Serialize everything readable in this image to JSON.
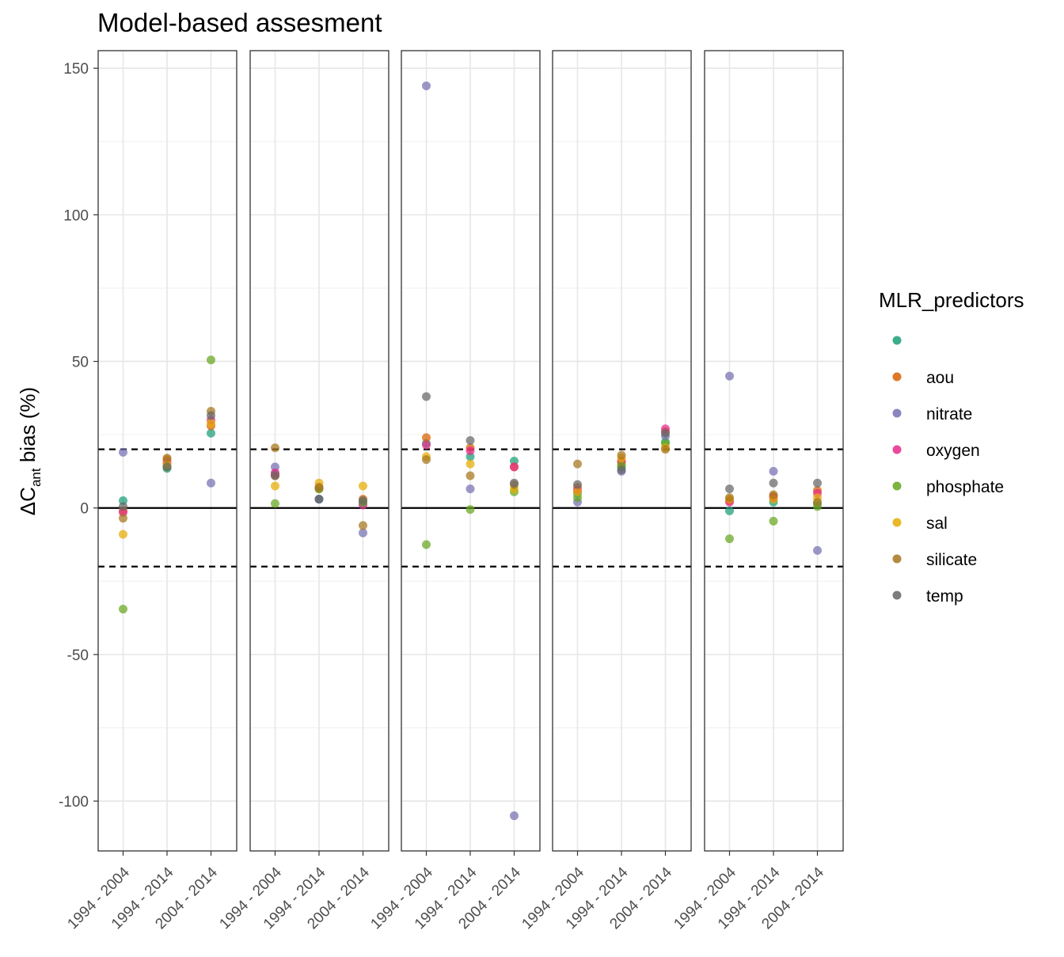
{
  "chart_data": {
    "type": "scatter",
    "title": "Model-based assesment",
    "ylabel": {
      "prefix": "ΔC",
      "subscript": "ant",
      "suffix": " bias (%)"
    },
    "xlabel": "",
    "ylim": [
      -117,
      156
    ],
    "y_ticks": [
      150,
      100,
      50,
      0,
      -50,
      -100
    ],
    "y_tick_labels": [
      "150",
      "100",
      "50",
      "0",
      "-50",
      "-100"
    ],
    "categories": [
      "1994 - 2004",
      "1994 - 2014",
      "2004 - 2014"
    ],
    "reference_lines": {
      "solid": 0,
      "dashed": [
        20,
        -20
      ]
    },
    "grid": true,
    "legend": {
      "title": "MLR_predictors",
      "position": "right",
      "entries": [
        "",
        "aou",
        "nitrate",
        "oxygen",
        "phosphate",
        "sal",
        "silicate",
        "temp"
      ]
    },
    "colors": {
      "": "#1B9E77",
      "aou": "#D95F02",
      "nitrate": "#7570B3",
      "oxygen": "#E7298A",
      "phosphate": "#66A61E",
      "sal": "#E6AB02",
      "silicate": "#A6761D",
      "temp": "#666666"
    },
    "panels": [
      {
        "points": [
          {
            "c": "1994 - 2004",
            "s": "",
            "y": 2.5
          },
          {
            "c": "1994 - 2004",
            "s": "aou",
            "y": -1
          },
          {
            "c": "1994 - 2004",
            "s": "nitrate",
            "y": 19
          },
          {
            "c": "1994 - 2004",
            "s": "oxygen",
            "y": -1.5
          },
          {
            "c": "1994 - 2004",
            "s": "phosphate",
            "y": -34.5
          },
          {
            "c": "1994 - 2004",
            "s": "sal",
            "y": -9
          },
          {
            "c": "1994 - 2004",
            "s": "silicate",
            "y": -3.5
          },
          {
            "c": "1994 - 2004",
            "s": "temp",
            "y": 0.5
          },
          {
            "c": "1994 - 2014",
            "s": "",
            "y": 13.5
          },
          {
            "c": "1994 - 2014",
            "s": "aou",
            "y": 16.5
          },
          {
            "c": "1994 - 2014",
            "s": "nitrate",
            "y": 14.5
          },
          {
            "c": "1994 - 2014",
            "s": "oxygen",
            "y": 15.5
          },
          {
            "c": "1994 - 2014",
            "s": "phosphate",
            "y": 14
          },
          {
            "c": "1994 - 2014",
            "s": "sal",
            "y": 15
          },
          {
            "c": "1994 - 2014",
            "s": "silicate",
            "y": 17
          },
          {
            "c": "1994 - 2014",
            "s": "temp",
            "y": 14
          },
          {
            "c": "2004 - 2014",
            "s": "",
            "y": 25.5
          },
          {
            "c": "2004 - 2014",
            "s": "aou",
            "y": 28
          },
          {
            "c": "2004 - 2014",
            "s": "nitrate",
            "y": 8.5
          },
          {
            "c": "2004 - 2014",
            "s": "oxygen",
            "y": 30
          },
          {
            "c": "2004 - 2014",
            "s": "phosphate",
            "y": 50.5
          },
          {
            "c": "2004 - 2014",
            "s": "sal",
            "y": 29
          },
          {
            "c": "2004 - 2014",
            "s": "silicate",
            "y": 33
          },
          {
            "c": "2004 - 2014",
            "s": "temp",
            "y": 31.5
          }
        ]
      },
      {
        "points": [
          {
            "c": "1994 - 2004",
            "s": "",
            "y": 11.5
          },
          {
            "c": "1994 - 2004",
            "s": "aou",
            "y": 11
          },
          {
            "c": "1994 - 2004",
            "s": "nitrate",
            "y": 14
          },
          {
            "c": "1994 - 2004",
            "s": "oxygen",
            "y": 12
          },
          {
            "c": "1994 - 2004",
            "s": "phosphate",
            "y": 1.5
          },
          {
            "c": "1994 - 2004",
            "s": "sal",
            "y": 7.5
          },
          {
            "c": "1994 - 2004",
            "s": "silicate",
            "y": 20.5
          },
          {
            "c": "1994 - 2004",
            "s": "temp",
            "y": 11
          },
          {
            "c": "1994 - 2014",
            "s": "",
            "y": 3
          },
          {
            "c": "1994 - 2014",
            "s": "aou",
            "y": 6.5
          },
          {
            "c": "1994 - 2014",
            "s": "nitrate",
            "y": 3
          },
          {
            "c": "1994 - 2014",
            "s": "oxygen",
            "y": 7
          },
          {
            "c": "1994 - 2014",
            "s": "phosphate",
            "y": 6.5
          },
          {
            "c": "1994 - 2014",
            "s": "sal",
            "y": 8.5
          },
          {
            "c": "1994 - 2014",
            "s": "silicate",
            "y": 7
          },
          {
            "c": "1994 - 2014",
            "s": "temp",
            "y": 3
          },
          {
            "c": "2004 - 2014",
            "s": "",
            "y": 1.5
          },
          {
            "c": "2004 - 2014",
            "s": "aou",
            "y": 3
          },
          {
            "c": "2004 - 2014",
            "s": "nitrate",
            "y": -8.5
          },
          {
            "c": "2004 - 2014",
            "s": "oxygen",
            "y": 1
          },
          {
            "c": "2004 - 2014",
            "s": "phosphate",
            "y": 2
          },
          {
            "c": "2004 - 2014",
            "s": "sal",
            "y": 7.5
          },
          {
            "c": "2004 - 2014",
            "s": "silicate",
            "y": -6
          },
          {
            "c": "2004 - 2014",
            "s": "temp",
            "y": 2.5
          }
        ]
      },
      {
        "points": [
          {
            "c": "1994 - 2004",
            "s": "",
            "y": 22
          },
          {
            "c": "1994 - 2004",
            "s": "aou",
            "y": 24
          },
          {
            "c": "1994 - 2004",
            "s": "nitrate",
            "y": 144
          },
          {
            "c": "1994 - 2004",
            "s": "oxygen",
            "y": 21.5
          },
          {
            "c": "1994 - 2004",
            "s": "phosphate",
            "y": -12.5
          },
          {
            "c": "1994 - 2004",
            "s": "sal",
            "y": 17.5
          },
          {
            "c": "1994 - 2004",
            "s": "silicate",
            "y": 16.5
          },
          {
            "c": "1994 - 2004",
            "s": "temp",
            "y": 38
          },
          {
            "c": "1994 - 2014",
            "s": "",
            "y": 17.5
          },
          {
            "c": "1994 - 2014",
            "s": "aou",
            "y": 20.5
          },
          {
            "c": "1994 - 2014",
            "s": "nitrate",
            "y": 6.5
          },
          {
            "c": "1994 - 2014",
            "s": "oxygen",
            "y": 19.5
          },
          {
            "c": "1994 - 2014",
            "s": "phosphate",
            "y": -0.5
          },
          {
            "c": "1994 - 2014",
            "s": "sal",
            "y": 15
          },
          {
            "c": "1994 - 2014",
            "s": "silicate",
            "y": 11
          },
          {
            "c": "1994 - 2014",
            "s": "temp",
            "y": 23
          },
          {
            "c": "2004 - 2014",
            "s": "",
            "y": 16
          },
          {
            "c": "2004 - 2014",
            "s": "aou",
            "y": 14
          },
          {
            "c": "2004 - 2014",
            "s": "nitrate",
            "y": -105
          },
          {
            "c": "2004 - 2014",
            "s": "oxygen",
            "y": 14
          },
          {
            "c": "2004 - 2014",
            "s": "phosphate",
            "y": 5.5
          },
          {
            "c": "2004 - 2014",
            "s": "sal",
            "y": 6.5
          },
          {
            "c": "2004 - 2014",
            "s": "silicate",
            "y": 8
          },
          {
            "c": "2004 - 2014",
            "s": "temp",
            "y": 8.5
          }
        ]
      },
      {
        "points": [
          {
            "c": "1994 - 2004",
            "s": "",
            "y": 5
          },
          {
            "c": "1994 - 2004",
            "s": "aou",
            "y": 7
          },
          {
            "c": "1994 - 2004",
            "s": "nitrate",
            "y": 2
          },
          {
            "c": "1994 - 2004",
            "s": "oxygen",
            "y": 6
          },
          {
            "c": "1994 - 2004",
            "s": "phosphate",
            "y": 3.5
          },
          {
            "c": "1994 - 2004",
            "s": "sal",
            "y": 5.5
          },
          {
            "c": "1994 - 2004",
            "s": "silicate",
            "y": 15
          },
          {
            "c": "1994 - 2004",
            "s": "temp",
            "y": 8
          },
          {
            "c": "1994 - 2014",
            "s": "",
            "y": 14
          },
          {
            "c": "1994 - 2014",
            "s": "aou",
            "y": 15.5
          },
          {
            "c": "1994 - 2014",
            "s": "nitrate",
            "y": 12.5
          },
          {
            "c": "1994 - 2014",
            "s": "oxygen",
            "y": 16
          },
          {
            "c": "1994 - 2014",
            "s": "phosphate",
            "y": 14.5
          },
          {
            "c": "1994 - 2014",
            "s": "sal",
            "y": 17
          },
          {
            "c": "1994 - 2014",
            "s": "silicate",
            "y": 18
          },
          {
            "c": "1994 - 2014",
            "s": "temp",
            "y": 13
          },
          {
            "c": "2004 - 2014",
            "s": "",
            "y": 22.5
          },
          {
            "c": "2004 - 2014",
            "s": "aou",
            "y": 26
          },
          {
            "c": "2004 - 2014",
            "s": "nitrate",
            "y": 24.5
          },
          {
            "c": "2004 - 2014",
            "s": "oxygen",
            "y": 27
          },
          {
            "c": "2004 - 2014",
            "s": "phosphate",
            "y": 22
          },
          {
            "c": "2004 - 2014",
            "s": "sal",
            "y": 20.5
          },
          {
            "c": "2004 - 2014",
            "s": "silicate",
            "y": 20
          },
          {
            "c": "2004 - 2014",
            "s": "temp",
            "y": 25.5
          }
        ]
      },
      {
        "points": [
          {
            "c": "1994 - 2004",
            "s": "",
            "y": -1
          },
          {
            "c": "1994 - 2004",
            "s": "aou",
            "y": 2.5
          },
          {
            "c": "1994 - 2004",
            "s": "nitrate",
            "y": 45
          },
          {
            "c": "1994 - 2004",
            "s": "oxygen",
            "y": 2
          },
          {
            "c": "1994 - 2004",
            "s": "phosphate",
            "y": -10.5
          },
          {
            "c": "1994 - 2004",
            "s": "sal",
            "y": 3
          },
          {
            "c": "1994 - 2004",
            "s": "silicate",
            "y": 3.5
          },
          {
            "c": "1994 - 2004",
            "s": "temp",
            "y": 6.5
          },
          {
            "c": "1994 - 2014",
            "s": "",
            "y": 2
          },
          {
            "c": "1994 - 2014",
            "s": "aou",
            "y": 4
          },
          {
            "c": "1994 - 2014",
            "s": "nitrate",
            "y": 12.5
          },
          {
            "c": "1994 - 2014",
            "s": "oxygen",
            "y": 3.5
          },
          {
            "c": "1994 - 2014",
            "s": "phosphate",
            "y": -4.5
          },
          {
            "c": "1994 - 2014",
            "s": "sal",
            "y": 3
          },
          {
            "c": "1994 - 2014",
            "s": "silicate",
            "y": 4.5
          },
          {
            "c": "1994 - 2014",
            "s": "temp",
            "y": 8.5
          },
          {
            "c": "2004 - 2014",
            "s": "",
            "y": 1.5
          },
          {
            "c": "2004 - 2014",
            "s": "aou",
            "y": 6
          },
          {
            "c": "2004 - 2014",
            "s": "nitrate",
            "y": -14.5
          },
          {
            "c": "2004 - 2014",
            "s": "oxygen",
            "y": 5
          },
          {
            "c": "2004 - 2014",
            "s": "phosphate",
            "y": 0.5
          },
          {
            "c": "2004 - 2014",
            "s": "sal",
            "y": 3.5
          },
          {
            "c": "2004 - 2014",
            "s": "silicate",
            "y": 2
          },
          {
            "c": "2004 - 2014",
            "s": "temp",
            "y": 8.5
          }
        ]
      }
    ]
  }
}
